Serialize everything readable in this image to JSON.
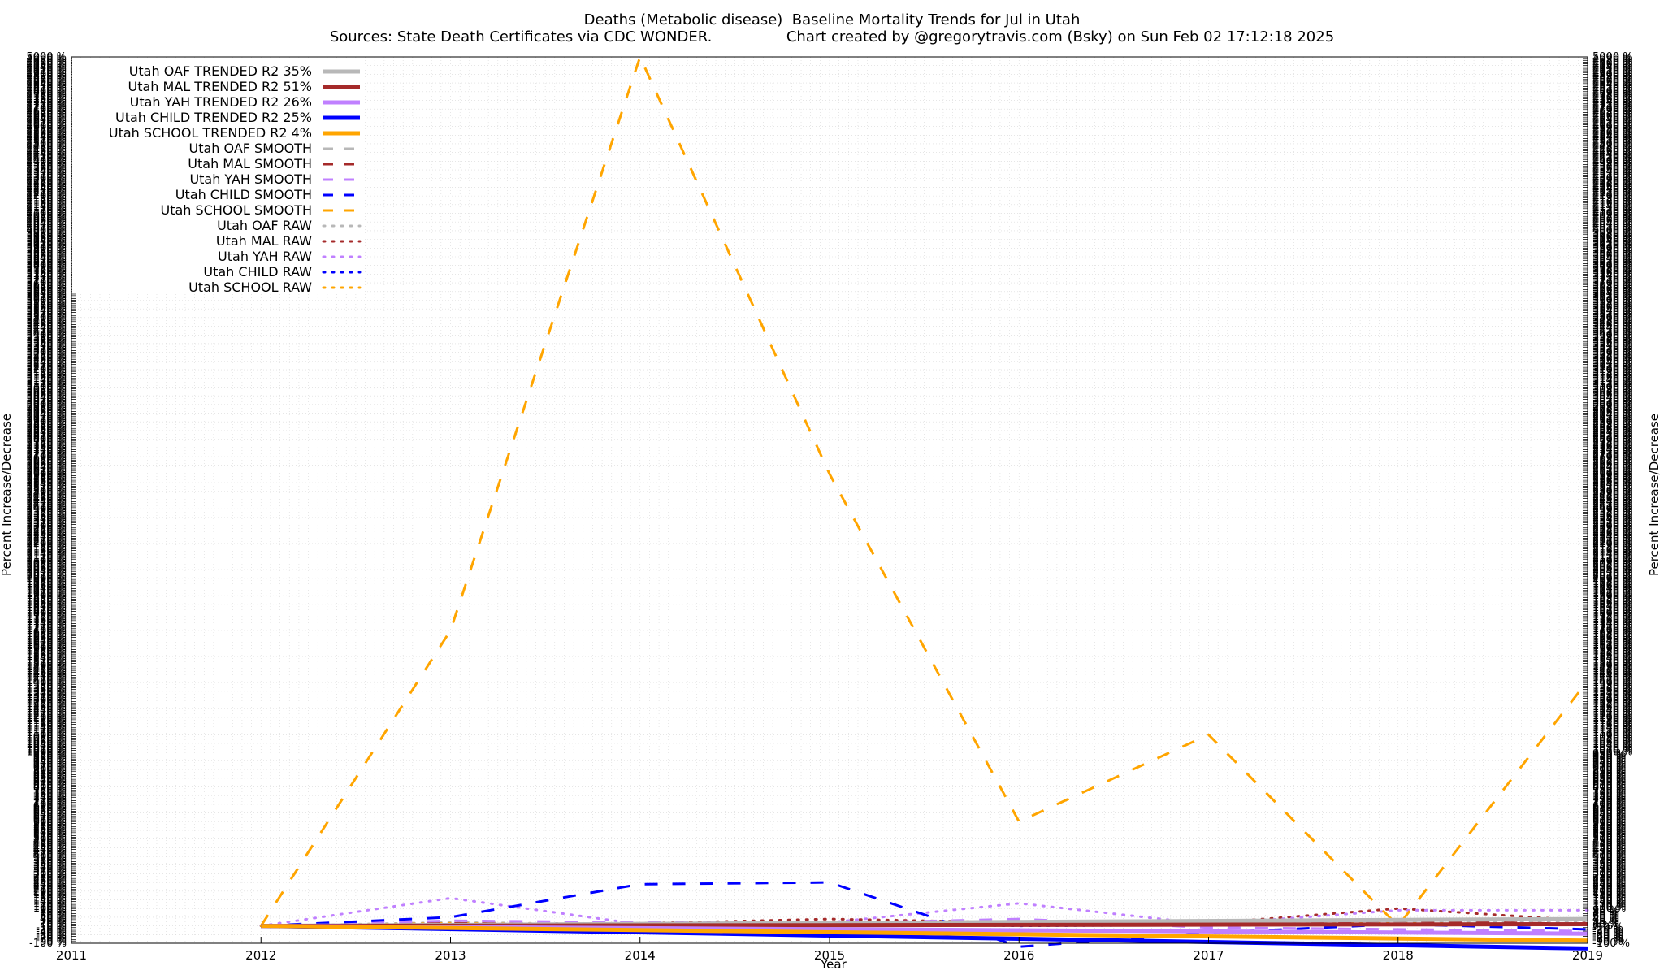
{
  "chart_data": {
    "type": "line",
    "title": "Deaths (Metabolic disease)  Baseline Mortality Trends for Jul in Utah",
    "subtitle": "Sources: State Death Certificates via CDC WONDER.                Chart created by @gregorytravis.com (Bsky) on Sun Feb 02 17:12:18 2025",
    "xlabel": "Year",
    "ylabel": "Percent Increase/Decrease",
    "y2label": "Percent Increase/Decrease",
    "xlim": [
      2011,
      2019
    ],
    "ylim": [
      -100,
      5000
    ],
    "x_ticks": [
      "2011",
      "2012",
      "2013",
      "2014",
      "2015",
      "2016",
      "2017",
      "2018",
      "2019"
    ],
    "grid": true,
    "legend_position": "top-left",
    "series": [
      {
        "name": "Utah OAF TRENDED R2  35%",
        "style": "solid",
        "color": "#b8b8b8",
        "x": [
          2012,
          2019
        ],
        "y": [
          0,
          40
        ]
      },
      {
        "name": "Utah MAL TRENDED R2  51%",
        "style": "solid",
        "color": "#a52a2a",
        "x": [
          2012,
          2019
        ],
        "y": [
          0,
          10
        ]
      },
      {
        "name": "Utah YAH TRENDED R2  26%",
        "style": "solid",
        "color": "#c080ff",
        "x": [
          2012,
          2019
        ],
        "y": [
          0,
          -45
        ]
      },
      {
        "name": "Utah CHILD TRENDED R2  25%",
        "style": "solid",
        "color": "#0000ff",
        "x": [
          2012,
          2019
        ],
        "y": [
          0,
          -130
        ]
      },
      {
        "name": "Utah SCHOOL TRENDED R2  4%",
        "style": "solid",
        "color": "#ffa500",
        "x": [
          2012,
          2019
        ],
        "y": [
          0,
          -85
        ]
      },
      {
        "name": "Utah OAF SMOOTH",
        "style": "dash",
        "color": "#b8b8b8",
        "x": [
          2012,
          2013,
          2014,
          2015,
          2016,
          2017,
          2018,
          2019
        ],
        "y": [
          0,
          10,
          5,
          15,
          20,
          10,
          20,
          15
        ]
      },
      {
        "name": "Utah MAL SMOOTH",
        "style": "dash",
        "color": "#a52a2a",
        "x": [
          2012,
          2013,
          2014,
          2015,
          2016,
          2017,
          2018,
          2019
        ],
        "y": [
          0,
          15,
          10,
          25,
          5,
          15,
          30,
          10
        ]
      },
      {
        "name": "Utah YAH SMOOTH",
        "style": "dash",
        "color": "#c080ff",
        "x": [
          2012,
          2013,
          2014,
          2015,
          2016,
          2017,
          2018,
          2019
        ],
        "y": [
          0,
          30,
          20,
          15,
          40,
          -10,
          -20,
          -30
        ]
      },
      {
        "name": "Utah CHILD SMOOTH",
        "style": "dash",
        "color": "#0000ff",
        "x": [
          2012,
          2013,
          2014,
          2015,
          2016,
          2017,
          2018,
          2019
        ],
        "y": [
          0,
          50,
          240,
          250,
          -120,
          -40,
          10,
          -20
        ]
      },
      {
        "name": "Utah SCHOOL SMOOTH",
        "style": "dash",
        "color": "#ffa500",
        "x": [
          2012,
          2013,
          2014,
          2015,
          2016,
          2017,
          2018,
          2019
        ],
        "y": [
          0,
          1700,
          5000,
          2600,
          600,
          1100,
          0,
          1410
        ]
      },
      {
        "name": "Utah OAF RAW",
        "style": "dot",
        "color": "#b8b8b8",
        "x": [
          2012,
          2013,
          2014,
          2015,
          2016,
          2017,
          2018,
          2019
        ],
        "y": [
          0,
          20,
          10,
          25,
          15,
          10,
          25,
          20
        ]
      },
      {
        "name": "Utah MAL RAW",
        "style": "dot",
        "color": "#a52a2a",
        "x": [
          2012,
          2013,
          2014,
          2015,
          2016,
          2017,
          2018,
          2019
        ],
        "y": [
          0,
          10,
          15,
          40,
          20,
          15,
          100,
          30
        ]
      },
      {
        "name": "Utah YAH RAW",
        "style": "dot",
        "color": "#c080ff",
        "x": [
          2012,
          2013,
          2014,
          2015,
          2016,
          2017,
          2018,
          2019
        ],
        "y": [
          0,
          160,
          10,
          20,
          130,
          10,
          90,
          90
        ]
      },
      {
        "name": "Utah CHILD RAW",
        "style": "dot",
        "color": "#0000ff",
        "x": [
          2012,
          2013,
          2014,
          2015,
          2016,
          2017,
          2018,
          2019
        ],
        "y": [
          0,
          10,
          5,
          15,
          0,
          5,
          10,
          5
        ]
      },
      {
        "name": "Utah SCHOOL RAW",
        "style": "dot",
        "color": "#ffa500",
        "x": [
          2012,
          2013,
          2014,
          2015,
          2016,
          2017,
          2018,
          2019
        ],
        "y": [
          0,
          15,
          10,
          20,
          5,
          10,
          15,
          10
        ]
      }
    ]
  }
}
